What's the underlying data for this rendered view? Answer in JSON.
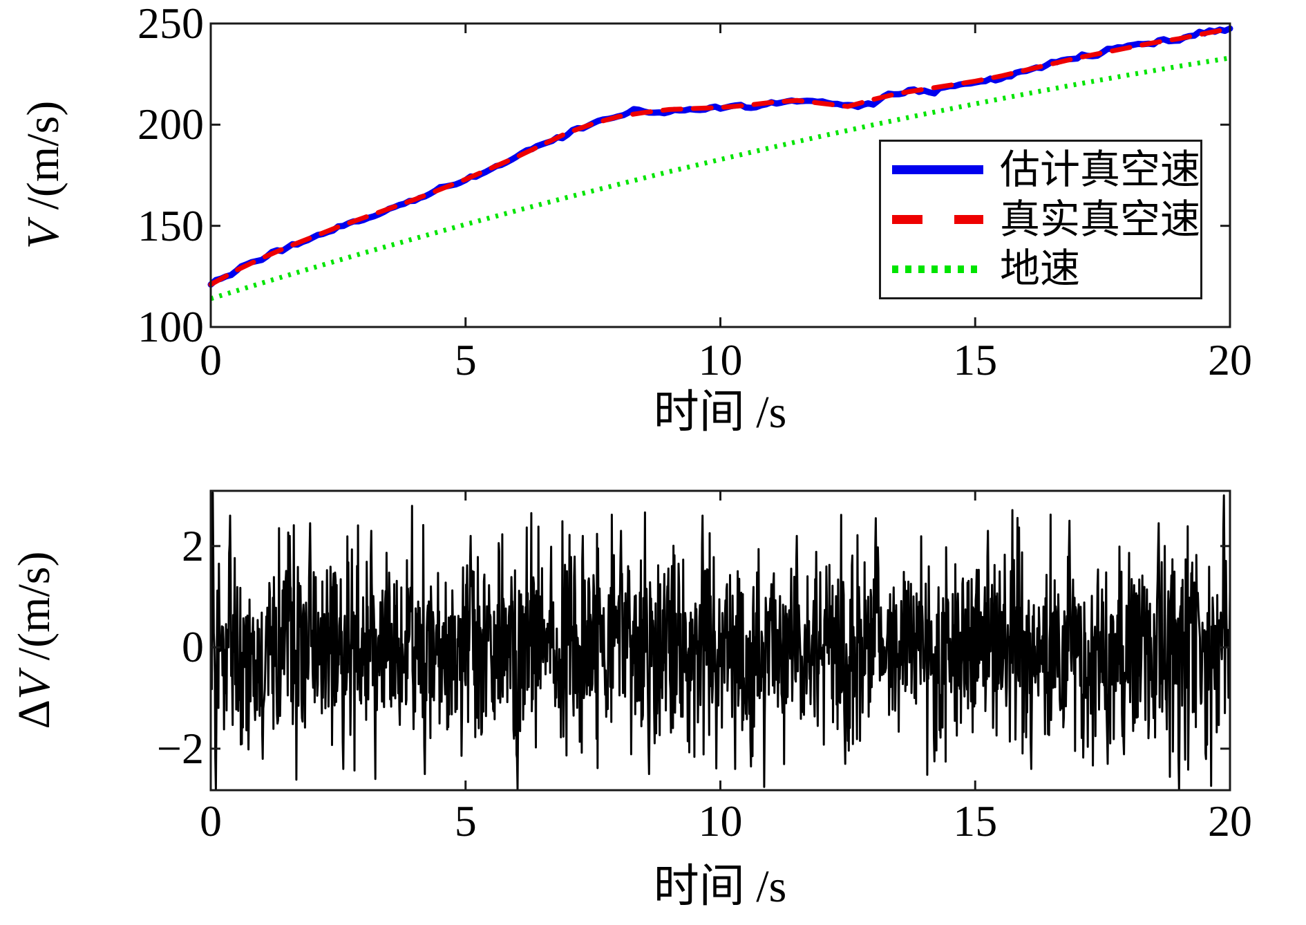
{
  "figure": {
    "background": "#ffffff",
    "axis_color": "#1a1a1a",
    "text_color": "#000000"
  },
  "chart_data": [
    {
      "type": "line",
      "title": "",
      "xlabel": "时间 /s",
      "ylabel_var": "V",
      "ylabel_unit": " /(m/s)",
      "xlim": [
        0,
        20
      ],
      "ylim": [
        100,
        250
      ],
      "xticks": [
        0,
        5,
        10,
        15,
        20
      ],
      "yticks": [
        100,
        150,
        200,
        250
      ],
      "xtick_labels": [
        "0",
        "5",
        "10",
        "15",
        "20"
      ],
      "ytick_labels": [
        "100",
        "150",
        "200",
        "250"
      ],
      "grid": false,
      "legend": {
        "position": "right-middle",
        "entries": [
          {
            "label": "估计真空速",
            "color": "#0000ee",
            "style": "solid"
          },
          {
            "label": "真实真空速",
            "color": "#ee0000",
            "style": "dashed"
          },
          {
            "label": "地速",
            "color": "#00e400",
            "style": "dotted"
          }
        ]
      },
      "series": [
        {
          "name": "估计真空速",
          "color": "#0000ee",
          "style": "solid",
          "line_width": 9,
          "x_start": 0,
          "x_step": 0.5,
          "y": [
            121,
            128,
            134,
            139.5,
            144.5,
            149.5,
            154,
            158.5,
            163,
            168,
            173,
            178.5,
            184,
            190,
            196,
            200.5,
            204,
            206,
            207.5,
            208,
            208.5,
            209.5,
            211,
            212,
            210.5,
            209,
            212.5,
            215.5,
            217.5,
            219.5,
            221.5,
            224,
            227,
            230,
            233,
            235.5,
            238,
            240.5,
            242.5,
            245,
            247.5
          ],
          "noise": {
            "seed": 5,
            "sigma": 0.8,
            "dt": 0.1,
            "ar": 0.55
          }
        },
        {
          "name": "真实真空速",
          "color": "#ee0000",
          "style": "dashed",
          "line_width": 7,
          "x_start": 0,
          "x_step": 0.5,
          "y": [
            121,
            128,
            134,
            139.5,
            144.5,
            149.5,
            154,
            158.5,
            163,
            168,
            173,
            178.5,
            184,
            190,
            196,
            200.5,
            204,
            206,
            207.5,
            208,
            208.5,
            209.5,
            211,
            212,
            210.5,
            209,
            212.5,
            215.5,
            217.5,
            219.5,
            221.5,
            224,
            227,
            230,
            233,
            235.5,
            238,
            240.5,
            242.5,
            245,
            247.5
          ]
        },
        {
          "name": "地速",
          "color": "#00e400",
          "style": "dotted",
          "line_width": 7,
          "x_start": 0,
          "x_step": 1,
          "y": [
            114,
            121.7,
            129.2,
            136.6,
            143.7,
            150.7,
            157.5,
            164.1,
            170.5,
            176.8,
            182.8,
            188.7,
            194.4,
            199.9,
            205.2,
            210.3,
            215.2,
            220,
            224.5,
            228.9,
            233
          ]
        }
      ]
    },
    {
      "type": "line",
      "title": "",
      "xlabel": "时间 /s",
      "ylabel_prefix": "Δ",
      "ylabel_var": "V",
      "ylabel_unit": " /(m/s)",
      "xlim": [
        0,
        20
      ],
      "ylim": [
        -2.82,
        3.09
      ],
      "xticks": [
        0,
        5,
        10,
        15,
        20
      ],
      "yticks": [
        -2,
        0,
        2
      ],
      "xtick_labels": [
        "0",
        "5",
        "10",
        "15",
        "20"
      ],
      "ytick_labels": [
        "−2",
        "0",
        "2"
      ],
      "grid": false,
      "series": [
        {
          "name": "ΔV",
          "color": "#000000",
          "style": "solid",
          "line_width": 3,
          "noise": {
            "seed": 11,
            "sigma": 0.95,
            "dt": 0.01,
            "n": 2001,
            "clip_low": -2.82,
            "clip_high": 3.05
          },
          "spikes": [
            {
              "t": 0.04,
              "v": 3.05
            },
            {
              "t": 0.1,
              "v": -2.8
            },
            {
              "t": 0.38,
              "v": 2.6
            },
            {
              "t": 1.02,
              "v": -2.2
            },
            {
              "t": 1.55,
              "v": 2.2
            },
            {
              "t": 1.95,
              "v": 2.45
            },
            {
              "t": 2.6,
              "v": -2.4
            },
            {
              "t": 3.15,
              "v": 2.3
            },
            {
              "t": 4.2,
              "v": -2.5
            },
            {
              "t": 5.1,
              "v": 2.2
            },
            {
              "t": 6.02,
              "v": -2.8
            },
            {
              "t": 7.3,
              "v": 2.2
            },
            {
              "t": 8.05,
              "v": 2.3
            },
            {
              "t": 8.6,
              "v": -2.5
            },
            {
              "t": 9.65,
              "v": 2.6
            },
            {
              "t": 10.6,
              "v": -2.35
            },
            {
              "t": 11.5,
              "v": 2.2
            },
            {
              "t": 12.45,
              "v": -2.3
            },
            {
              "t": 13.05,
              "v": 2.55
            },
            {
              "t": 14.2,
              "v": -2.25
            },
            {
              "t": 15.25,
              "v": 2.3
            },
            {
              "t": 16.1,
              "v": -2.4
            },
            {
              "t": 16.85,
              "v": 2.5
            },
            {
              "t": 17.6,
              "v": -2.3
            },
            {
              "t": 18.6,
              "v": 2.45
            },
            {
              "t": 19.0,
              "v": -2.82
            },
            {
              "t": 19.88,
              "v": 3.0
            }
          ]
        }
      ]
    }
  ]
}
